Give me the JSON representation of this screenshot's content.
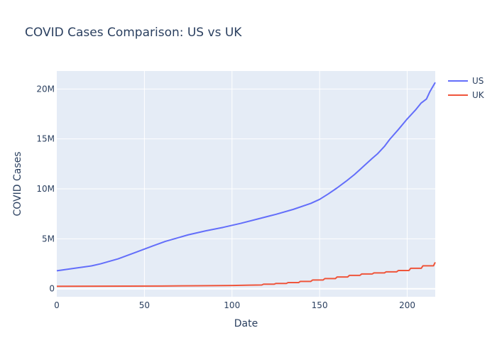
{
  "chart_data": {
    "type": "line",
    "title": "COVID Cases Comparison: US vs UK",
    "xlabel": "Date",
    "ylabel": "COVID Cases",
    "xlim": [
      0,
      216
    ],
    "ylim": [
      -800000,
      21800000
    ],
    "x_ticks": [
      0,
      50,
      100,
      150,
      200
    ],
    "x_tick_labels": [
      "0",
      "50",
      "100",
      "150",
      "200"
    ],
    "y_ticks": [
      0,
      5000000,
      10000000,
      15000000,
      20000000
    ],
    "y_tick_labels": [
      "0",
      "5M",
      "10M",
      "15M",
      "20M"
    ],
    "grid": true,
    "legend_position": "top-right",
    "series": [
      {
        "name": "US",
        "color": "#636efa",
        "x": [
          0,
          10,
          20,
          25,
          35,
          45,
          55,
          62,
          70,
          75,
          85,
          95,
          105,
          115,
          125,
          135,
          145,
          150,
          155,
          160,
          165,
          170,
          175,
          180,
          183,
          187,
          190,
          195,
          200,
          205,
          208,
          211,
          213,
          216
        ],
        "y": [
          1800000,
          2050000,
          2300000,
          2500000,
          3000000,
          3650000,
          4300000,
          4750000,
          5150000,
          5400000,
          5800000,
          6150000,
          6550000,
          7000000,
          7450000,
          7950000,
          8550000,
          8950000,
          9500000,
          10100000,
          10750000,
          11450000,
          12250000,
          13050000,
          13500000,
          14250000,
          14950000,
          15950000,
          17000000,
          17950000,
          18600000,
          19000000,
          19750000,
          20650000
        ]
      },
      {
        "name": "UK",
        "color": "#ef553b",
        "x": [
          0,
          20,
          40,
          60,
          80,
          100,
          110,
          117,
          118,
          124,
          125,
          131,
          132,
          138,
          139,
          145,
          146,
          152,
          153,
          159,
          160,
          166,
          167,
          173,
          174,
          180,
          181,
          187,
          188,
          194,
          195,
          201,
          202,
          208,
          209,
          215,
          216
        ],
        "y": [
          250000,
          255000,
          265000,
          275000,
          300000,
          330000,
          360000,
          380000,
          460000,
          460000,
          530000,
          530000,
          620000,
          620000,
          740000,
          740000,
          880000,
          880000,
          1020000,
          1020000,
          1180000,
          1180000,
          1340000,
          1340000,
          1480000,
          1480000,
          1590000,
          1590000,
          1700000,
          1700000,
          1830000,
          1830000,
          2050000,
          2050000,
          2300000,
          2300000,
          2650000
        ]
      }
    ]
  }
}
